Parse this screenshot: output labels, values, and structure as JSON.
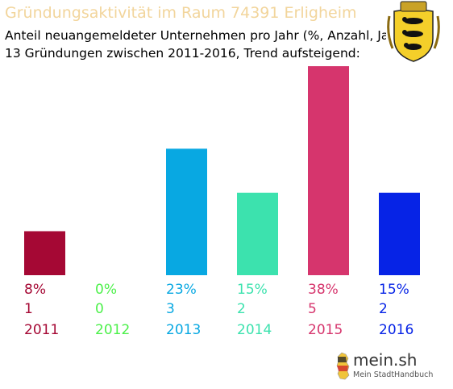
{
  "header": {
    "title": "Gründungsaktivität im Raum 74391 Erligheim",
    "subtitle_line1": "Anteil neuangemeldeter Unternehmen pro Jahr (%, Anzahl, Jahr)",
    "subtitle_line2": "13 Gründungen zwischen 2011-2016, Trend aufsteigend:",
    "title_color": "#f2d59c"
  },
  "crest": {
    "icon": "baden-wuerttemberg-coat-of-arms-icon"
  },
  "brand": {
    "name": "mein.sh",
    "tagline": "Mein StadtHandbuch",
    "icon": "germany-map-icon"
  },
  "chart_data": {
    "type": "bar",
    "title": "Gründungsaktivität im Raum 74391 Erligheim",
    "categories": [
      "2011",
      "2012",
      "2013",
      "2014",
      "2015",
      "2016"
    ],
    "series": [
      {
        "values": [
          8,
          0,
          23,
          15,
          38,
          15
        ]
      }
    ],
    "percent_labels": [
      "8%",
      "0%",
      "23%",
      "15%",
      "38%",
      "15%"
    ],
    "counts": [
      1,
      0,
      3,
      2,
      5,
      2
    ],
    "colors": [
      "#a50834",
      "#4cf04a",
      "#08a8e2",
      "#3ce2ae",
      "#d6356d",
      "#0623e6"
    ],
    "ylim": [
      0,
      38
    ],
    "xlabel": "",
    "ylabel": "",
    "grid": false,
    "legend": "none"
  }
}
